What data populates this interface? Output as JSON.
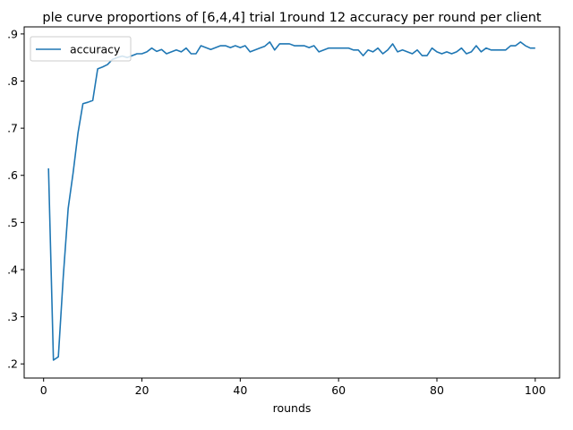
{
  "chart_data": {
    "type": "line",
    "title": "ple curve proportions of [6,4,4] trial 1round 12 accuracy per round per client",
    "xlabel": "rounds",
    "ylabel": "",
    "xlim": [
      -3.95,
      104.95
    ],
    "ylim": [
      0.17,
      0.915
    ],
    "xticks": [
      0,
      20,
      40,
      60,
      80,
      100
    ],
    "yticks": [
      0.2,
      0.3,
      0.4,
      0.5,
      0.6,
      0.7,
      0.8,
      0.9
    ],
    "ytick_labels": [
      ".2",
      ".3",
      ".4",
      ".5",
      ".6",
      ".7",
      ".8",
      ".9"
    ],
    "grid": false,
    "legend_position": "top-left",
    "series": [
      {
        "name": "accuracy",
        "color": "#1f77b4",
        "x": [
          1,
          2,
          3,
          4,
          5,
          6,
          7,
          8,
          9,
          10,
          11,
          12,
          13,
          14,
          15,
          16,
          17,
          18,
          19,
          20,
          21,
          22,
          23,
          24,
          25,
          26,
          27,
          28,
          29,
          30,
          31,
          32,
          33,
          34,
          35,
          36,
          37,
          38,
          39,
          40,
          41,
          42,
          43,
          44,
          45,
          46,
          47,
          48,
          49,
          50,
          51,
          52,
          53,
          54,
          55,
          56,
          57,
          58,
          59,
          60,
          61,
          62,
          63,
          64,
          65,
          66,
          67,
          68,
          69,
          70,
          71,
          72,
          73,
          74,
          75,
          76,
          77,
          78,
          79,
          80,
          81,
          82,
          83,
          84,
          85,
          86,
          87,
          88,
          89,
          90,
          91,
          92,
          93,
          94,
          95,
          96,
          97,
          98,
          99,
          100
        ],
        "y": [
          0.615,
          0.208,
          0.215,
          0.385,
          0.53,
          0.605,
          0.69,
          0.752,
          0.755,
          0.759,
          0.826,
          0.83,
          0.835,
          0.846,
          0.85,
          0.853,
          0.85,
          0.854,
          0.858,
          0.858,
          0.862,
          0.87,
          0.863,
          0.867,
          0.858,
          0.862,
          0.866,
          0.862,
          0.87,
          0.858,
          0.858,
          0.875,
          0.871,
          0.867,
          0.871,
          0.875,
          0.875,
          0.871,
          0.875,
          0.871,
          0.875,
          0.862,
          0.866,
          0.87,
          0.874,
          0.883,
          0.866,
          0.879,
          0.879,
          0.879,
          0.875,
          0.875,
          0.875,
          0.871,
          0.875,
          0.862,
          0.866,
          0.87,
          0.87,
          0.87,
          0.87,
          0.87,
          0.866,
          0.866,
          0.854,
          0.866,
          0.862,
          0.87,
          0.858,
          0.866,
          0.879,
          0.862,
          0.866,
          0.862,
          0.858,
          0.866,
          0.854,
          0.854,
          0.87,
          0.862,
          0.858,
          0.862,
          0.858,
          0.862,
          0.87,
          0.858,
          0.862,
          0.875,
          0.862,
          0.87,
          0.866,
          0.866,
          0.866,
          0.866,
          0.875,
          0.875,
          0.883,
          0.875,
          0.87,
          0.87
        ]
      }
    ]
  }
}
